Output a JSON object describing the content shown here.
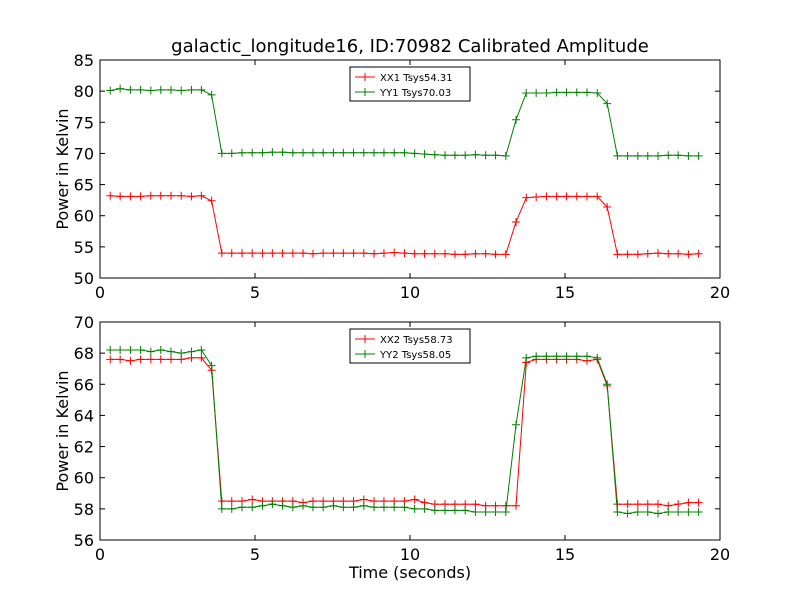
{
  "title": "galactic_longitude16, ID:70982 Calibrated Amplitude",
  "chart_data": [
    {
      "type": "line",
      "title": "galactic_longitude16, ID:70982 Calibrated Amplitude",
      "xlabel": "",
      "ylabel": "Power in Kelvin",
      "xlim": [
        0,
        20
      ],
      "ylim": [
        50,
        85
      ],
      "xticks": [
        "0",
        "5",
        "10",
        "15",
        "20"
      ],
      "yticks": [
        "50",
        "55",
        "60",
        "65",
        "70",
        "75",
        "80",
        "85"
      ],
      "legend_position": "top-center",
      "x": [
        0.33,
        0.65,
        0.98,
        1.31,
        1.64,
        1.96,
        2.29,
        2.62,
        2.95,
        3.27,
        3.6,
        3.93,
        4.25,
        4.58,
        4.91,
        5.24,
        5.56,
        5.89,
        6.22,
        6.55,
        6.87,
        7.2,
        7.53,
        7.85,
        8.18,
        8.51,
        8.84,
        9.16,
        9.49,
        9.82,
        10.15,
        10.47,
        10.8,
        11.13,
        11.45,
        11.78,
        12.11,
        12.44,
        12.76,
        13.09,
        13.42,
        13.75,
        14.07,
        14.4,
        14.73,
        15.05,
        15.38,
        15.71,
        16.04,
        16.36,
        16.69,
        17.02,
        17.35,
        17.67,
        18.0,
        18.33,
        18.65,
        18.98,
        19.31
      ],
      "series": [
        {
          "name": "XX1 Tsys54.31",
          "color": "#ff0000",
          "values": [
            63.2,
            63.1,
            63.1,
            63.1,
            63.2,
            63.2,
            63.2,
            63.2,
            63.1,
            63.2,
            62.4,
            54.0,
            54.0,
            54.0,
            54.0,
            54.0,
            54.0,
            54.0,
            54.0,
            54.0,
            53.9,
            54.0,
            54.0,
            54.0,
            54.0,
            54.0,
            53.9,
            54.0,
            54.1,
            54.0,
            53.9,
            53.9,
            53.9,
            53.9,
            53.8,
            53.8,
            53.9,
            53.9,
            53.8,
            53.8,
            59.0,
            62.9,
            63.0,
            63.1,
            63.1,
            63.1,
            63.1,
            63.1,
            63.1,
            61.4,
            53.8,
            53.8,
            53.8,
            53.9,
            54.0,
            53.9,
            53.9,
            53.8,
            53.9
          ]
        },
        {
          "name": "YY1 Tsys70.03",
          "color": "#008000",
          "values": [
            80.1,
            80.4,
            80.2,
            80.2,
            80.1,
            80.2,
            80.2,
            80.1,
            80.2,
            80.2,
            79.4,
            70.0,
            70.0,
            70.1,
            70.1,
            70.1,
            70.2,
            70.2,
            70.1,
            70.1,
            70.1,
            70.1,
            70.1,
            70.1,
            70.1,
            70.1,
            70.1,
            70.1,
            70.1,
            70.1,
            70.0,
            69.9,
            69.8,
            69.7,
            69.7,
            69.7,
            69.8,
            69.7,
            69.7,
            69.6,
            75.4,
            79.7,
            79.7,
            79.7,
            79.8,
            79.8,
            79.8,
            79.8,
            79.7,
            78.0,
            69.6,
            69.6,
            69.6,
            69.6,
            69.6,
            69.7,
            69.7,
            69.6,
            69.6
          ]
        }
      ]
    },
    {
      "type": "line",
      "title": "",
      "xlabel": "Time (seconds)",
      "ylabel": "Power in Kelvin",
      "xlim": [
        0,
        20
      ],
      "ylim": [
        56,
        70
      ],
      "xticks": [
        "0",
        "5",
        "10",
        "15",
        "20"
      ],
      "yticks": [
        "56",
        "58",
        "60",
        "62",
        "64",
        "66",
        "68",
        "70"
      ],
      "legend_position": "top-center",
      "x": [
        0.33,
        0.65,
        0.98,
        1.31,
        1.64,
        1.96,
        2.29,
        2.62,
        2.95,
        3.27,
        3.6,
        3.93,
        4.25,
        4.58,
        4.91,
        5.24,
        5.56,
        5.89,
        6.22,
        6.55,
        6.87,
        7.2,
        7.53,
        7.85,
        8.18,
        8.51,
        8.84,
        9.16,
        9.49,
        9.82,
        10.15,
        10.47,
        10.8,
        11.13,
        11.45,
        11.78,
        12.11,
        12.44,
        12.76,
        13.09,
        13.42,
        13.75,
        14.07,
        14.4,
        14.73,
        15.05,
        15.38,
        15.71,
        16.04,
        16.36,
        16.69,
        17.02,
        17.35,
        17.67,
        18.0,
        18.33,
        18.65,
        18.98,
        19.31
      ],
      "series": [
        {
          "name": "XX2 Tsys58.73",
          "color": "#ff0000",
          "values": [
            67.6,
            67.6,
            67.5,
            67.6,
            67.6,
            67.6,
            67.6,
            67.6,
            67.7,
            67.7,
            66.9,
            58.5,
            58.5,
            58.5,
            58.6,
            58.5,
            58.5,
            58.5,
            58.5,
            58.4,
            58.5,
            58.5,
            58.5,
            58.5,
            58.5,
            58.6,
            58.5,
            58.5,
            58.5,
            58.5,
            58.6,
            58.4,
            58.3,
            58.3,
            58.3,
            58.3,
            58.3,
            58.2,
            58.2,
            58.2,
            58.2,
            67.4,
            67.6,
            67.6,
            67.6,
            67.6,
            67.6,
            67.5,
            67.6,
            65.9,
            58.3,
            58.3,
            58.3,
            58.3,
            58.3,
            58.2,
            58.3,
            58.4,
            58.4
          ]
        },
        {
          "name": "YY2 Tsys58.05",
          "color": "#008000",
          "values": [
            68.2,
            68.2,
            68.2,
            68.2,
            68.1,
            68.2,
            68.1,
            68.0,
            68.1,
            68.2,
            67.2,
            58.0,
            58.0,
            58.1,
            58.1,
            58.2,
            58.3,
            58.2,
            58.1,
            58.2,
            58.1,
            58.1,
            58.2,
            58.1,
            58.1,
            58.2,
            58.1,
            58.1,
            58.1,
            58.1,
            58.0,
            58.0,
            57.9,
            57.9,
            57.9,
            57.9,
            57.8,
            57.8,
            57.8,
            57.8,
            63.4,
            67.7,
            67.8,
            67.8,
            67.8,
            67.8,
            67.8,
            67.8,
            67.7,
            66.0,
            57.8,
            57.7,
            57.8,
            57.8,
            57.7,
            57.8,
            57.8,
            57.8,
            57.8
          ]
        }
      ]
    }
  ]
}
